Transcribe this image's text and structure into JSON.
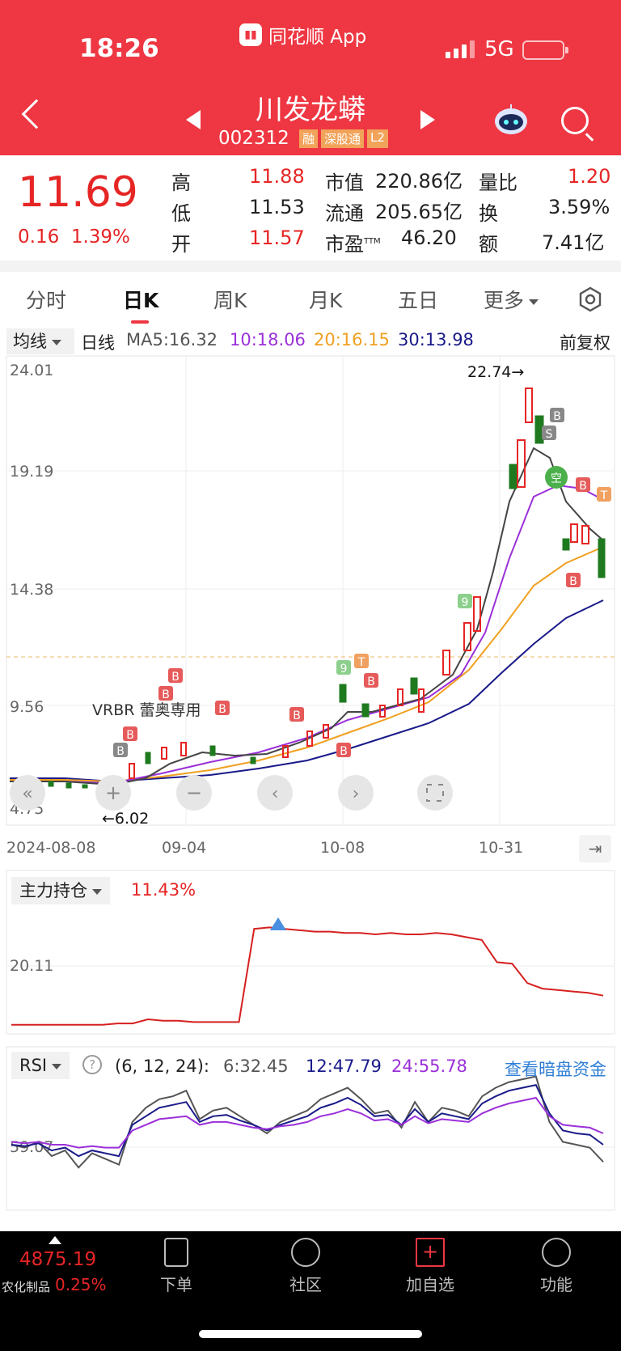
{
  "status_bar": {
    "time": "18:26",
    "app_name": "同花顺 App",
    "network": "5G"
  },
  "header": {
    "stock_name": "川发龙蟒",
    "stock_code": "002312",
    "tags": [
      "融",
      "深股通",
      "L2"
    ]
  },
  "quote": {
    "price": "11.69",
    "change": "0.16",
    "change_pct": "1.39%",
    "high_label": "高",
    "high": "11.88",
    "low_label": "低",
    "low": "11.53",
    "open_label": "开",
    "open": "11.57",
    "mktcap_label": "市值",
    "mktcap": "220.86亿",
    "float_label": "流通",
    "float": "205.65亿",
    "pe_label": "市盈",
    "pe_sup": "TTM",
    "pe": "46.20",
    "volratio_label": "量比",
    "volratio": "1.20",
    "turnover_label": "换",
    "turnover": "3.59%",
    "amount_label": "额",
    "amount": "7.41亿"
  },
  "tabs": [
    "分时",
    "日K",
    "周K",
    "月K",
    "五日",
    "更多"
  ],
  "ma_bar": {
    "selector": "均线",
    "period": "日线",
    "ma5": "MA5:16.32",
    "ma10": "10:18.06",
    "ma20": "20:16.15",
    "ma30": "30:13.98",
    "adjust": "前复权",
    "colors": {
      "ma5": "#333333",
      "ma10": "#9b30d9",
      "ma20": "#f0a020",
      "ma30": "#1a1a8a"
    }
  },
  "kline": {
    "y_ticks": [
      "24.01",
      "19.19",
      "14.38",
      "9.56",
      "4.75"
    ],
    "high_marker": "22.74→",
    "low_marker": "←6.02",
    "annotation": "VRBR 蕾奥専用",
    "x_ticks": [
      "2024-08-08",
      "09-04",
      "10-08",
      "10-31"
    ]
  },
  "chart_data": [
    {
      "type": "line",
      "title": "主力持仓",
      "value_label": "11.43%",
      "y_tick": "20.11",
      "series": [
        {
          "values": [
            3,
            3,
            3,
            3,
            3,
            3,
            3,
            4,
            4,
            7,
            6,
            6,
            5,
            5,
            5,
            5,
            72,
            73,
            72,
            71,
            70,
            70,
            69,
            69,
            68,
            69,
            68,
            68,
            69,
            68,
            66,
            64,
            48,
            47,
            33,
            29,
            28,
            27,
            26,
            24
          ]
        }
      ]
    },
    {
      "type": "line",
      "title": "RSI",
      "params": "(6, 12, 24):",
      "y_tick": "59.07",
      "link": "查看暗盘资金",
      "series": [
        {
          "name": "6:32.45",
          "color": "#555555",
          "values": [
            46,
            44,
            48,
            38,
            42,
            30,
            40,
            36,
            32,
            62,
            72,
            78,
            80,
            84,
            64,
            70,
            72,
            66,
            60,
            54,
            62,
            66,
            70,
            78,
            82,
            86,
            78,
            68,
            70,
            58,
            76,
            62,
            72,
            70,
            66,
            80,
            86,
            90,
            92,
            94,
            62,
            48,
            46,
            44,
            34
          ]
        },
        {
          "name": "12:47.79",
          "color": "#1a1a8a",
          "values": [
            46,
            45,
            47,
            42,
            44,
            38,
            42,
            40,
            38,
            60,
            66,
            72,
            74,
            76,
            62,
            66,
            67,
            63,
            60,
            56,
            60,
            63,
            66,
            72,
            75,
            79,
            74,
            66,
            67,
            60,
            71,
            62,
            68,
            66,
            64,
            75,
            80,
            84,
            86,
            88,
            68,
            56,
            54,
            53,
            46
          ]
        },
        {
          "name": "24:55.78",
          "color": "#9b30d9",
          "values": [
            48,
            47,
            48,
            46,
            46,
            44,
            45,
            44,
            44,
            56,
            60,
            64,
            65,
            66,
            60,
            62,
            62,
            60,
            58,
            57,
            59,
            60,
            62,
            66,
            68,
            71,
            68,
            63,
            64,
            60,
            66,
            61,
            64,
            63,
            62,
            68,
            72,
            75,
            77,
            79,
            66,
            60,
            59,
            58,
            54
          ]
        }
      ]
    }
  ],
  "bottom_nav": {
    "index_value": "4875.19",
    "index_name": "农化制品",
    "index_pct": "0.25%",
    "items": [
      "下单",
      "社区",
      "加自选",
      "功能"
    ]
  }
}
